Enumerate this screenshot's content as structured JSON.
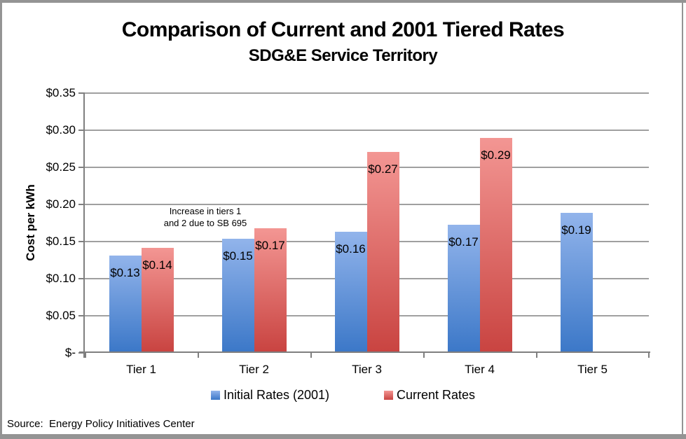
{
  "page": {
    "source_note": "Source:  Energy Policy Initiatives Center"
  },
  "chart_data": {
    "type": "bar",
    "title": "Comparison of Current and 2001 Tiered Rates",
    "subtitle": "SDG&E Service Territory",
    "xlabel": "",
    "ylabel": "Cost per kWh",
    "ylim": [
      0,
      0.35
    ],
    "ytick_step": 0.05,
    "ytick_labels": [
      "$-",
      "$0.05",
      "$0.10",
      "$0.15",
      "$0.20",
      "$0.25",
      "$0.30",
      "$0.35"
    ],
    "categories": [
      "Tier 1",
      "Tier 2",
      "Tier 3",
      "Tier 4",
      "Tier 5"
    ],
    "series": [
      {
        "name": "Initial Rates (2001)",
        "values": [
          0.129,
          0.152,
          0.161,
          0.171,
          0.187
        ],
        "labels": [
          "$0.13",
          "$0.15",
          "$0.16",
          "$0.17",
          "$0.19"
        ],
        "color_top": "#92B4EB",
        "color_bottom": "#3C78C8"
      },
      {
        "name": "Current Rates",
        "values": [
          0.14,
          0.166,
          0.269,
          0.288,
          null
        ],
        "labels": [
          "$0.14",
          "$0.17",
          "$0.27",
          "$0.29",
          null
        ],
        "color_top": "#F39693",
        "color_bottom": "#C94441"
      }
    ],
    "annotation": "Increase in tiers 1\nand 2 due to SB 695",
    "legend_position": "bottom",
    "grid": true
  }
}
